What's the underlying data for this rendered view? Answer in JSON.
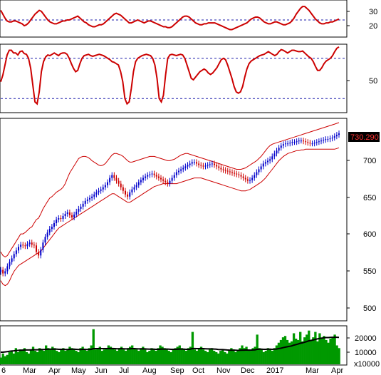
{
  "chart_data": [
    {
      "type": "line",
      "panel": "oscillator-top",
      "y_ticks": [
        "30",
        "20"
      ],
      "ylim": [
        8,
        45
      ],
      "reference_lines": [
        25
      ],
      "line_color": "#cc0000",
      "values": [
        35,
        31,
        27,
        24,
        23,
        23,
        24,
        24,
        23,
        22,
        21,
        19,
        20,
        22,
        25,
        28,
        31,
        33,
        35,
        34,
        31,
        28,
        25,
        23,
        22,
        21,
        21,
        22,
        23,
        24,
        24,
        25,
        25,
        26,
        27,
        28,
        29,
        27,
        25,
        23,
        22,
        20,
        19,
        18,
        18,
        19,
        20,
        20,
        21,
        23,
        25,
        27,
        29,
        31,
        32,
        31,
        30,
        28,
        26,
        24,
        22,
        22,
        23,
        24,
        25,
        24,
        23,
        22,
        23,
        24,
        24,
        23,
        22,
        21,
        20,
        19,
        18,
        18,
        17,
        17,
        18,
        20,
        22,
        24,
        26,
        28,
        29,
        29,
        28,
        26,
        24,
        22,
        21,
        20,
        20,
        21,
        21,
        22,
        22,
        22,
        22,
        21,
        20,
        19,
        18,
        17,
        16,
        15,
        15,
        16,
        17,
        18,
        19,
        20,
        21,
        22,
        24,
        26,
        27,
        28,
        28,
        27,
        25,
        23,
        22,
        21,
        21,
        22,
        23,
        23,
        22,
        21,
        20,
        20,
        21,
        22,
        24,
        27,
        31,
        34,
        37,
        39,
        39,
        37,
        35,
        32,
        29,
        26,
        24,
        22,
        21,
        21,
        22,
        22,
        23,
        23,
        24,
        25,
        26
      ]
    },
    {
      "type": "line",
      "panel": "oscillator-middle",
      "y_ticks": [
        "50"
      ],
      "ylim": [
        0,
        100
      ],
      "reference_lines": [
        80,
        20
      ],
      "line_color": "#cc0000",
      "values": [
        45,
        55,
        70,
        85,
        92,
        92,
        88,
        88,
        85,
        90,
        91,
        87,
        86,
        80,
        65,
        40,
        15,
        12,
        30,
        60,
        75,
        82,
        85,
        84,
        86,
        88,
        86,
        84,
        87,
        88,
        88,
        86,
        80,
        72,
        65,
        60,
        62,
        72,
        80,
        84,
        85,
        86,
        84,
        83,
        84,
        85,
        86,
        85,
        84,
        82,
        80,
        78,
        75,
        74,
        72,
        70,
        60,
        45,
        20,
        12,
        15,
        35,
        60,
        75,
        80,
        82,
        84,
        85,
        86,
        85,
        84,
        80,
        70,
        50,
        20,
        15,
        25,
        55,
        80,
        85,
        86,
        85,
        84,
        85,
        86,
        85,
        80,
        70,
        60,
        50,
        48,
        52,
        56,
        60,
        62,
        64,
        62,
        58,
        56,
        58,
        62,
        66,
        72,
        78,
        80,
        78,
        70,
        60,
        50,
        38,
        30,
        28,
        30,
        38,
        52,
        64,
        72,
        76,
        78,
        80,
        82,
        84,
        85,
        86,
        88,
        90,
        88,
        86,
        84,
        86,
        90,
        93,
        92,
        90,
        88,
        90,
        92,
        92,
        91,
        90,
        90,
        91,
        88,
        85,
        82,
        80,
        75,
        68,
        62,
        62,
        66,
        72,
        76,
        78,
        80,
        84,
        90,
        95,
        97
      ]
    },
    {
      "type": "bar",
      "subtype": "candlestick-with-bands",
      "panel": "price",
      "ylim": [
        470,
        750
      ],
      "y_ticks": [
        "700",
        "650",
        "600",
        "550",
        "500"
      ],
      "last_price_label": "730.290",
      "up_color": "#0000cc",
      "down_color": "#cc0000",
      "band_color": "#cc0000",
      "close": [
        540,
        535,
        538,
        545,
        551,
        556,
        562,
        567,
        572,
        575,
        574,
        573,
        576,
        578,
        575,
        574,
        565,
        560,
        568,
        578,
        586,
        592,
        597,
        600,
        605,
        610,
        612,
        611,
        615,
        618,
        620,
        616,
        613,
        617,
        621,
        625,
        628,
        632,
        636,
        638,
        640,
        642,
        645,
        648,
        650,
        652,
        655,
        658,
        662,
        668,
        672,
        668,
        664,
        660,
        655,
        650,
        645,
        642,
        648,
        652,
        655,
        658,
        662,
        665,
        668,
        670,
        672,
        673,
        674,
        672,
        670,
        668,
        666,
        664,
        662,
        660,
        664,
        668,
        672,
        676,
        678,
        680,
        682,
        684,
        686,
        688,
        690,
        690,
        688,
        686,
        685,
        684,
        685,
        686,
        687,
        688,
        686,
        684,
        682,
        680,
        679,
        678,
        677,
        676,
        675,
        674,
        673,
        672,
        670,
        668,
        666,
        664,
        665,
        668,
        672,
        676,
        680,
        684,
        688,
        690,
        692,
        694,
        698,
        702,
        706,
        710,
        713,
        715,
        716,
        716,
        717,
        718,
        718,
        719,
        720,
        720,
        719,
        718,
        717,
        716,
        716,
        717,
        718,
        719,
        720,
        721,
        722,
        722,
        723,
        724,
        726,
        728,
        730
      ],
      "upper_band": [
        565,
        560,
        558,
        560,
        565,
        570,
        575,
        580,
        585,
        590,
        590,
        592,
        595,
        598,
        600,
        605,
        610,
        612,
        618,
        625,
        630,
        635,
        640,
        642,
        645,
        648,
        650,
        652,
        655,
        660,
        668,
        675,
        680,
        685,
        690,
        695,
        697,
        698,
        698,
        697,
        695,
        692,
        690,
        688,
        686,
        685,
        686,
        688,
        692,
        696,
        700,
        702,
        702,
        701,
        700,
        698,
        695,
        692,
        690,
        690,
        691,
        692,
        693,
        694,
        695,
        696,
        697,
        698,
        698,
        698,
        697,
        696,
        695,
        694,
        693,
        692,
        692,
        693,
        694,
        696,
        698,
        700,
        701,
        702,
        702,
        701,
        700,
        699,
        698,
        697,
        696,
        695,
        694,
        693,
        692,
        691,
        690,
        689,
        688,
        687,
        686,
        685,
        684,
        683,
        682,
        681,
        680,
        680,
        680,
        681,
        682,
        684,
        686,
        688,
        690,
        692,
        695,
        698,
        702,
        706,
        710,
        713,
        715,
        716,
        717,
        718,
        719,
        720,
        721,
        722,
        723,
        724,
        725,
        726,
        727,
        728,
        729,
        730,
        731,
        732,
        733,
        734,
        735,
        736,
        737,
        738,
        739,
        740,
        741,
        742,
        743,
        744,
        745
      ],
      "lower_band": [
        525,
        520,
        518,
        520,
        525,
        532,
        538,
        542,
        546,
        548,
        550,
        552,
        554,
        556,
        558,
        560,
        562,
        564,
        566,
        570,
        574,
        578,
        582,
        586,
        590,
        594,
        598,
        600,
        602,
        604,
        606,
        608,
        610,
        612,
        614,
        616,
        618,
        620,
        622,
        624,
        626,
        628,
        630,
        632,
        634,
        636,
        638,
        640,
        642,
        644,
        646,
        646,
        644,
        642,
        640,
        638,
        636,
        634,
        634,
        636,
        638,
        640,
        642,
        644,
        646,
        648,
        650,
        652,
        654,
        656,
        657,
        658,
        659,
        660,
        660,
        660,
        660,
        660,
        660,
        660,
        661,
        662,
        663,
        664,
        665,
        666,
        667,
        668,
        668,
        668,
        668,
        667,
        666,
        665,
        664,
        663,
        662,
        661,
        660,
        659,
        658,
        657,
        656,
        655,
        654,
        653,
        652,
        651,
        650,
        650,
        650,
        651,
        652,
        654,
        656,
        658,
        660,
        662,
        665,
        668,
        672,
        676,
        680,
        684,
        688,
        692,
        695,
        698,
        700,
        702,
        703,
        704,
        705,
        706,
        706,
        707,
        707,
        708,
        708,
        708,
        708,
        708,
        708,
        708,
        708,
        708,
        708,
        708,
        708,
        708,
        708,
        709,
        710
      ]
    },
    {
      "type": "bar",
      "panel": "volume",
      "ylim": [
        0,
        28000
      ],
      "y_ticks": [
        "20000",
        "10000"
      ],
      "units_label": "x10000",
      "bar_color": "#009900",
      "ma_color": "#000000",
      "values": [
        5000,
        8000,
        6000,
        7000,
        9000,
        10000,
        8000,
        12000,
        9000,
        11000,
        10000,
        12000,
        9000,
        8000,
        11000,
        13000,
        10000,
        9000,
        12000,
        11000,
        10000,
        14000,
        12000,
        11000,
        13000,
        12000,
        10000,
        9000,
        11000,
        12000,
        10000,
        11000,
        13000,
        12000,
        11000,
        10000,
        9000,
        12000,
        13000,
        11000,
        10000,
        12000,
        14000,
        26000,
        11000,
        12000,
        13000,
        10000,
        11000,
        12000,
        14000,
        13000,
        12000,
        11000,
        10000,
        12000,
        13000,
        11000,
        10000,
        12000,
        13000,
        14000,
        12000,
        11000,
        10000,
        12000,
        13000,
        11000,
        9000,
        10000,
        12000,
        11000,
        10000,
        12000,
        14000,
        13000,
        12000,
        11000,
        10000,
        9000,
        11000,
        12000,
        13000,
        14000,
        12000,
        11000,
        10000,
        12000,
        13000,
        24000,
        11000,
        10000,
        12000,
        13000,
        11000,
        10000,
        9000,
        11000,
        12000,
        10000,
        9000,
        8000,
        10000,
        11000,
        9000,
        8000,
        10000,
        12000,
        11000,
        9000,
        10000,
        12000,
        14000,
        12000,
        13000,
        11000,
        10000,
        12000,
        13000,
        22000,
        12000,
        11000,
        9000,
        10000,
        12000,
        11000,
        10000,
        12000,
        14000,
        16000,
        18000,
        20000,
        21000,
        18000,
        16000,
        17000,
        23000,
        19000,
        18000,
        24000,
        17000,
        20000,
        22000,
        25000,
        18000,
        20000,
        24000,
        17000,
        23000,
        19000,
        21000,
        18000,
        16000,
        19000,
        20000,
        22000,
        14000,
        12000
      ],
      "ma_values": [
        9000,
        9000,
        9200,
        9400,
        9600,
        9800,
        10000,
        10200,
        10300,
        10400,
        10500,
        10600,
        10600,
        10600,
        10700,
        10800,
        10800,
        10800,
        10900,
        11000,
        11000,
        11100,
        11200,
        11200,
        11200,
        11300,
        11200,
        11100,
        11100,
        11100,
        11000,
        11000,
        11100,
        11200,
        11200,
        11100,
        11000,
        11000,
        11100,
        11100,
        11000,
        11000,
        11100,
        11600,
        11600,
        11600,
        11700,
        11600,
        11600,
        11600,
        11700,
        11700,
        11700,
        11600,
        11500,
        11500,
        11600,
        11500,
        11400,
        11400,
        11500,
        11600,
        11600,
        11500,
        11400,
        11400,
        11500,
        11400,
        11300,
        11200,
        11200,
        11200,
        11100,
        11100,
        11200,
        11300,
        11300,
        11300,
        11200,
        11100,
        11100,
        11100,
        11200,
        11300,
        11300,
        11200,
        11100,
        11100,
        11200,
        11700,
        11700,
        11600,
        11600,
        11700,
        11600,
        11500,
        11400,
        11400,
        11400,
        11300,
        11200,
        11000,
        10900,
        10900,
        10800,
        10600,
        10500,
        10500,
        10500,
        10400,
        10300,
        10400,
        10500,
        10500,
        10600,
        10500,
        10500,
        10600,
        10700,
        11100,
        11200,
        11200,
        11100,
        11100,
        11200,
        11200,
        11100,
        11200,
        11300,
        11600,
        11900,
        12300,
        12700,
        13000,
        13300,
        13600,
        14200,
        14600,
        15000,
        15600,
        15900,
        16300,
        16800,
        17400,
        17700,
        18000,
        18500,
        18800,
        19200,
        19400,
        19700,
        19800,
        19800,
        19900,
        20000,
        20100,
        20000,
        19900
      ]
    }
  ],
  "x_axis": {
    "labels": [
      "6",
      "Mar",
      "Apr",
      "May",
      "Jun",
      "Jul",
      "Aug",
      "Sep",
      "Oct",
      "Nov",
      "Dec",
      "2017",
      "Mar",
      "Apr"
    ]
  }
}
